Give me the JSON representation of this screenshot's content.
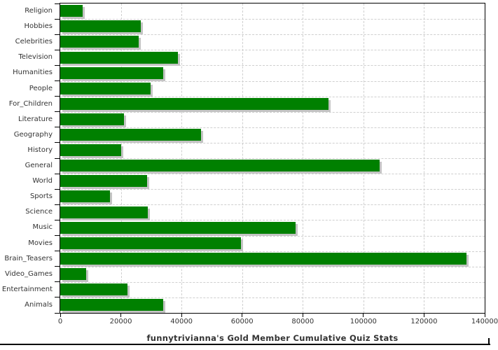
{
  "chart_data": {
    "type": "bar",
    "orientation": "horizontal",
    "title": "funnytrivianna's Gold Member Cumulative Quiz Stats",
    "categories": [
      "Religion",
      "Hobbies",
      "Celebrities",
      "Television",
      "Humanities",
      "People",
      "For_Children",
      "Literature",
      "Geography",
      "History",
      "General",
      "World",
      "Sports",
      "Science",
      "Music",
      "Movies",
      "Brain_Teasers",
      "Video_Games",
      "Entertainment",
      "Animals"
    ],
    "values": [
      7400,
      26500,
      25800,
      38700,
      33900,
      29800,
      88500,
      21000,
      46400,
      20000,
      105400,
      28600,
      16300,
      28800,
      77600,
      59500,
      134000,
      8500,
      22100,
      34000
    ],
    "xlim": [
      0,
      140000
    ],
    "x_ticks": [
      0,
      20000,
      40000,
      60000,
      80000,
      100000,
      120000,
      140000
    ],
    "x_tick_labels": [
      "0",
      "20000",
      "40000",
      "60000",
      "80000",
      "100000",
      "120000",
      "140000"
    ],
    "xlabel": "",
    "ylabel": "",
    "grid": true,
    "legend": "none",
    "bar_color": "#008000",
    "bar_shadow_color": "#c4c4c4",
    "grid_color": "#cfcfcf",
    "axis_color": "#000000",
    "label_color": "#333333"
  }
}
